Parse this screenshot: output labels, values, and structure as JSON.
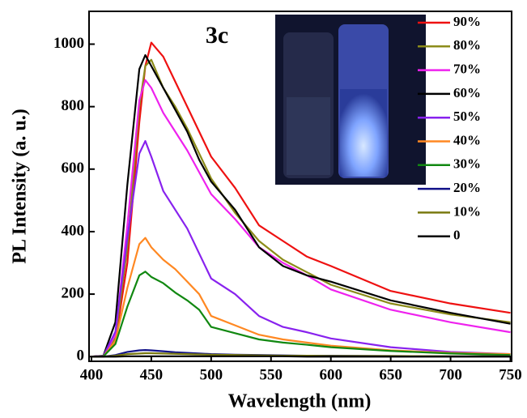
{
  "chart_data": {
    "type": "line",
    "title": "3c",
    "xlabel": "Wavelength (nm)",
    "ylabel": "PL Intensity (a. u.)",
    "x": [
      400,
      410,
      420,
      430,
      440,
      445,
      450,
      460,
      470,
      480,
      490,
      500,
      520,
      540,
      560,
      580,
      600,
      650,
      700,
      750
    ],
    "xlim": [
      398,
      751
    ],
    "xticks": [
      400,
      450,
      500,
      550,
      600,
      650,
      700,
      750
    ],
    "ylim": [
      -15,
      1105
    ],
    "yticks": [
      0,
      200,
      400,
      600,
      800,
      1000
    ],
    "series": [
      {
        "name": "90%",
        "color": "#ee1111",
        "values": [
          0,
          2,
          50,
          300,
          750,
          930,
          1005,
          960,
          880,
          800,
          720,
          640,
          540,
          420,
          370,
          320,
          290,
          210,
          170,
          140
        ]
      },
      {
        "name": "80%",
        "color": "#8c8c1a",
        "values": [
          0,
          2,
          60,
          350,
          800,
          930,
          950,
          860,
          800,
          730,
          650,
          570,
          460,
          370,
          310,
          270,
          230,
          170,
          135,
          110
        ]
      },
      {
        "name": "70%",
        "color": "#ee22ee",
        "values": [
          0,
          2,
          70,
          420,
          820,
          885,
          860,
          780,
          720,
          660,
          590,
          520,
          440,
          350,
          300,
          260,
          215,
          150,
          110,
          78
        ]
      },
      {
        "name": "60%",
        "color": "#000000",
        "values": [
          0,
          3,
          110,
          550,
          920,
          965,
          930,
          860,
          790,
          720,
          630,
          560,
          470,
          350,
          290,
          260,
          240,
          180,
          140,
          105
        ]
      },
      {
        "name": "50%",
        "color": "#8822ee",
        "values": [
          0,
          2,
          80,
          380,
          650,
          690,
          640,
          530,
          470,
          410,
          330,
          250,
          200,
          130,
          95,
          78,
          58,
          30,
          15,
          8
        ]
      },
      {
        "name": "40%",
        "color": "#ff8822",
        "values": [
          0,
          1,
          50,
          220,
          360,
          380,
          350,
          310,
          280,
          240,
          200,
          130,
          100,
          70,
          55,
          45,
          35,
          20,
          12,
          8
        ]
      },
      {
        "name": "30%",
        "color": "#118811",
        "values": [
          0,
          1,
          40,
          160,
          260,
          272,
          255,
          235,
          205,
          180,
          150,
          95,
          75,
          55,
          45,
          38,
          30,
          18,
          10,
          5
        ]
      },
      {
        "name": "20%",
        "color": "#111188",
        "values": [
          0,
          0,
          5,
          15,
          20,
          21,
          20,
          17,
          14,
          12,
          10,
          8,
          6,
          5,
          4,
          3,
          3,
          2,
          1,
          1
        ]
      },
      {
        "name": "10%",
        "color": "#7a7a10",
        "values": [
          0,
          0,
          3,
          8,
          10,
          11,
          11,
          10,
          9,
          8,
          7,
          6,
          5,
          4,
          3,
          3,
          2,
          2,
          1,
          1
        ]
      },
      {
        "name": "0",
        "color": "#000000",
        "values": [
          0,
          0,
          0,
          1,
          1,
          1,
          1,
          1,
          1,
          1,
          1,
          1,
          1,
          1,
          1,
          0,
          0,
          0,
          0,
          0
        ]
      }
    ]
  }
}
